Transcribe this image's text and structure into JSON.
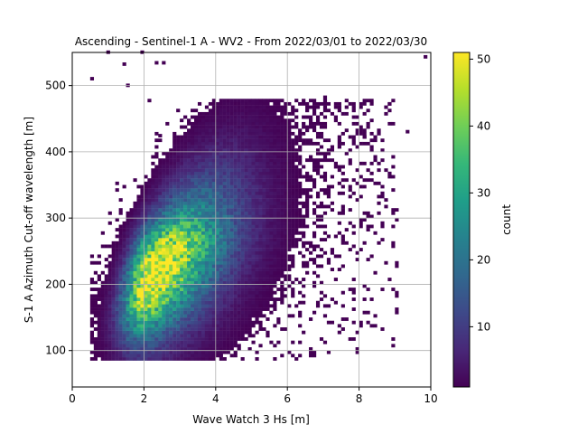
{
  "chart_data": {
    "type": "heatmap",
    "title": "Ascending - Sentinel-1 A - WV2 - From 2022/03/01 to 2022/03/30",
    "xlabel": "Wave Watch 3 Hs [m]",
    "ylabel": "S-1 A Azimuth Cut-off wavelength [m]",
    "xlim": [
      0,
      10
    ],
    "ylim": [
      45,
      550
    ],
    "xticks": [
      0,
      2,
      4,
      6,
      8,
      10
    ],
    "yticks": [
      100,
      200,
      300,
      400,
      500
    ],
    "grid": true,
    "colormap": "viridis",
    "colorbar": {
      "label": "count",
      "range": [
        1,
        51
      ],
      "ticks": [
        10,
        20,
        30,
        40,
        50
      ]
    },
    "distribution": {
      "x_range": [
        0.5,
        9.8
      ],
      "y_range": [
        85,
        550
      ],
      "peak": {
        "x": 2.1,
        "y": 195,
        "count": 51
      },
      "trend": "counts concentrated along a band rising from about (1.5 m, 150 m) to (6 m, 360 m)",
      "outliers": [
        {
          "x": 0.5,
          "y": 508
        },
        {
          "x": 0.95,
          "y": 548
        },
        {
          "x": 1.9,
          "y": 548
        },
        {
          "x": 2.3,
          "y": 532
        },
        {
          "x": 2.5,
          "y": 532
        },
        {
          "x": 1.4,
          "y": 530
        },
        {
          "x": 1.5,
          "y": 498
        },
        {
          "x": 9.8,
          "y": 541
        },
        {
          "x": 8.8,
          "y": 470
        },
        {
          "x": 9.3,
          "y": 428
        },
        {
          "x": 7.0,
          "y": 480
        },
        {
          "x": 8.1,
          "y": 420
        },
        {
          "x": 2.4,
          "y": 422
        }
      ]
    }
  },
  "colors": {
    "grid": "#b0b0b0",
    "viridis": [
      "#440154",
      "#482878",
      "#3e4989",
      "#31688e",
      "#26828e",
      "#1f9e89",
      "#35b779",
      "#6ece58",
      "#b5de2b",
      "#fde725"
    ]
  }
}
